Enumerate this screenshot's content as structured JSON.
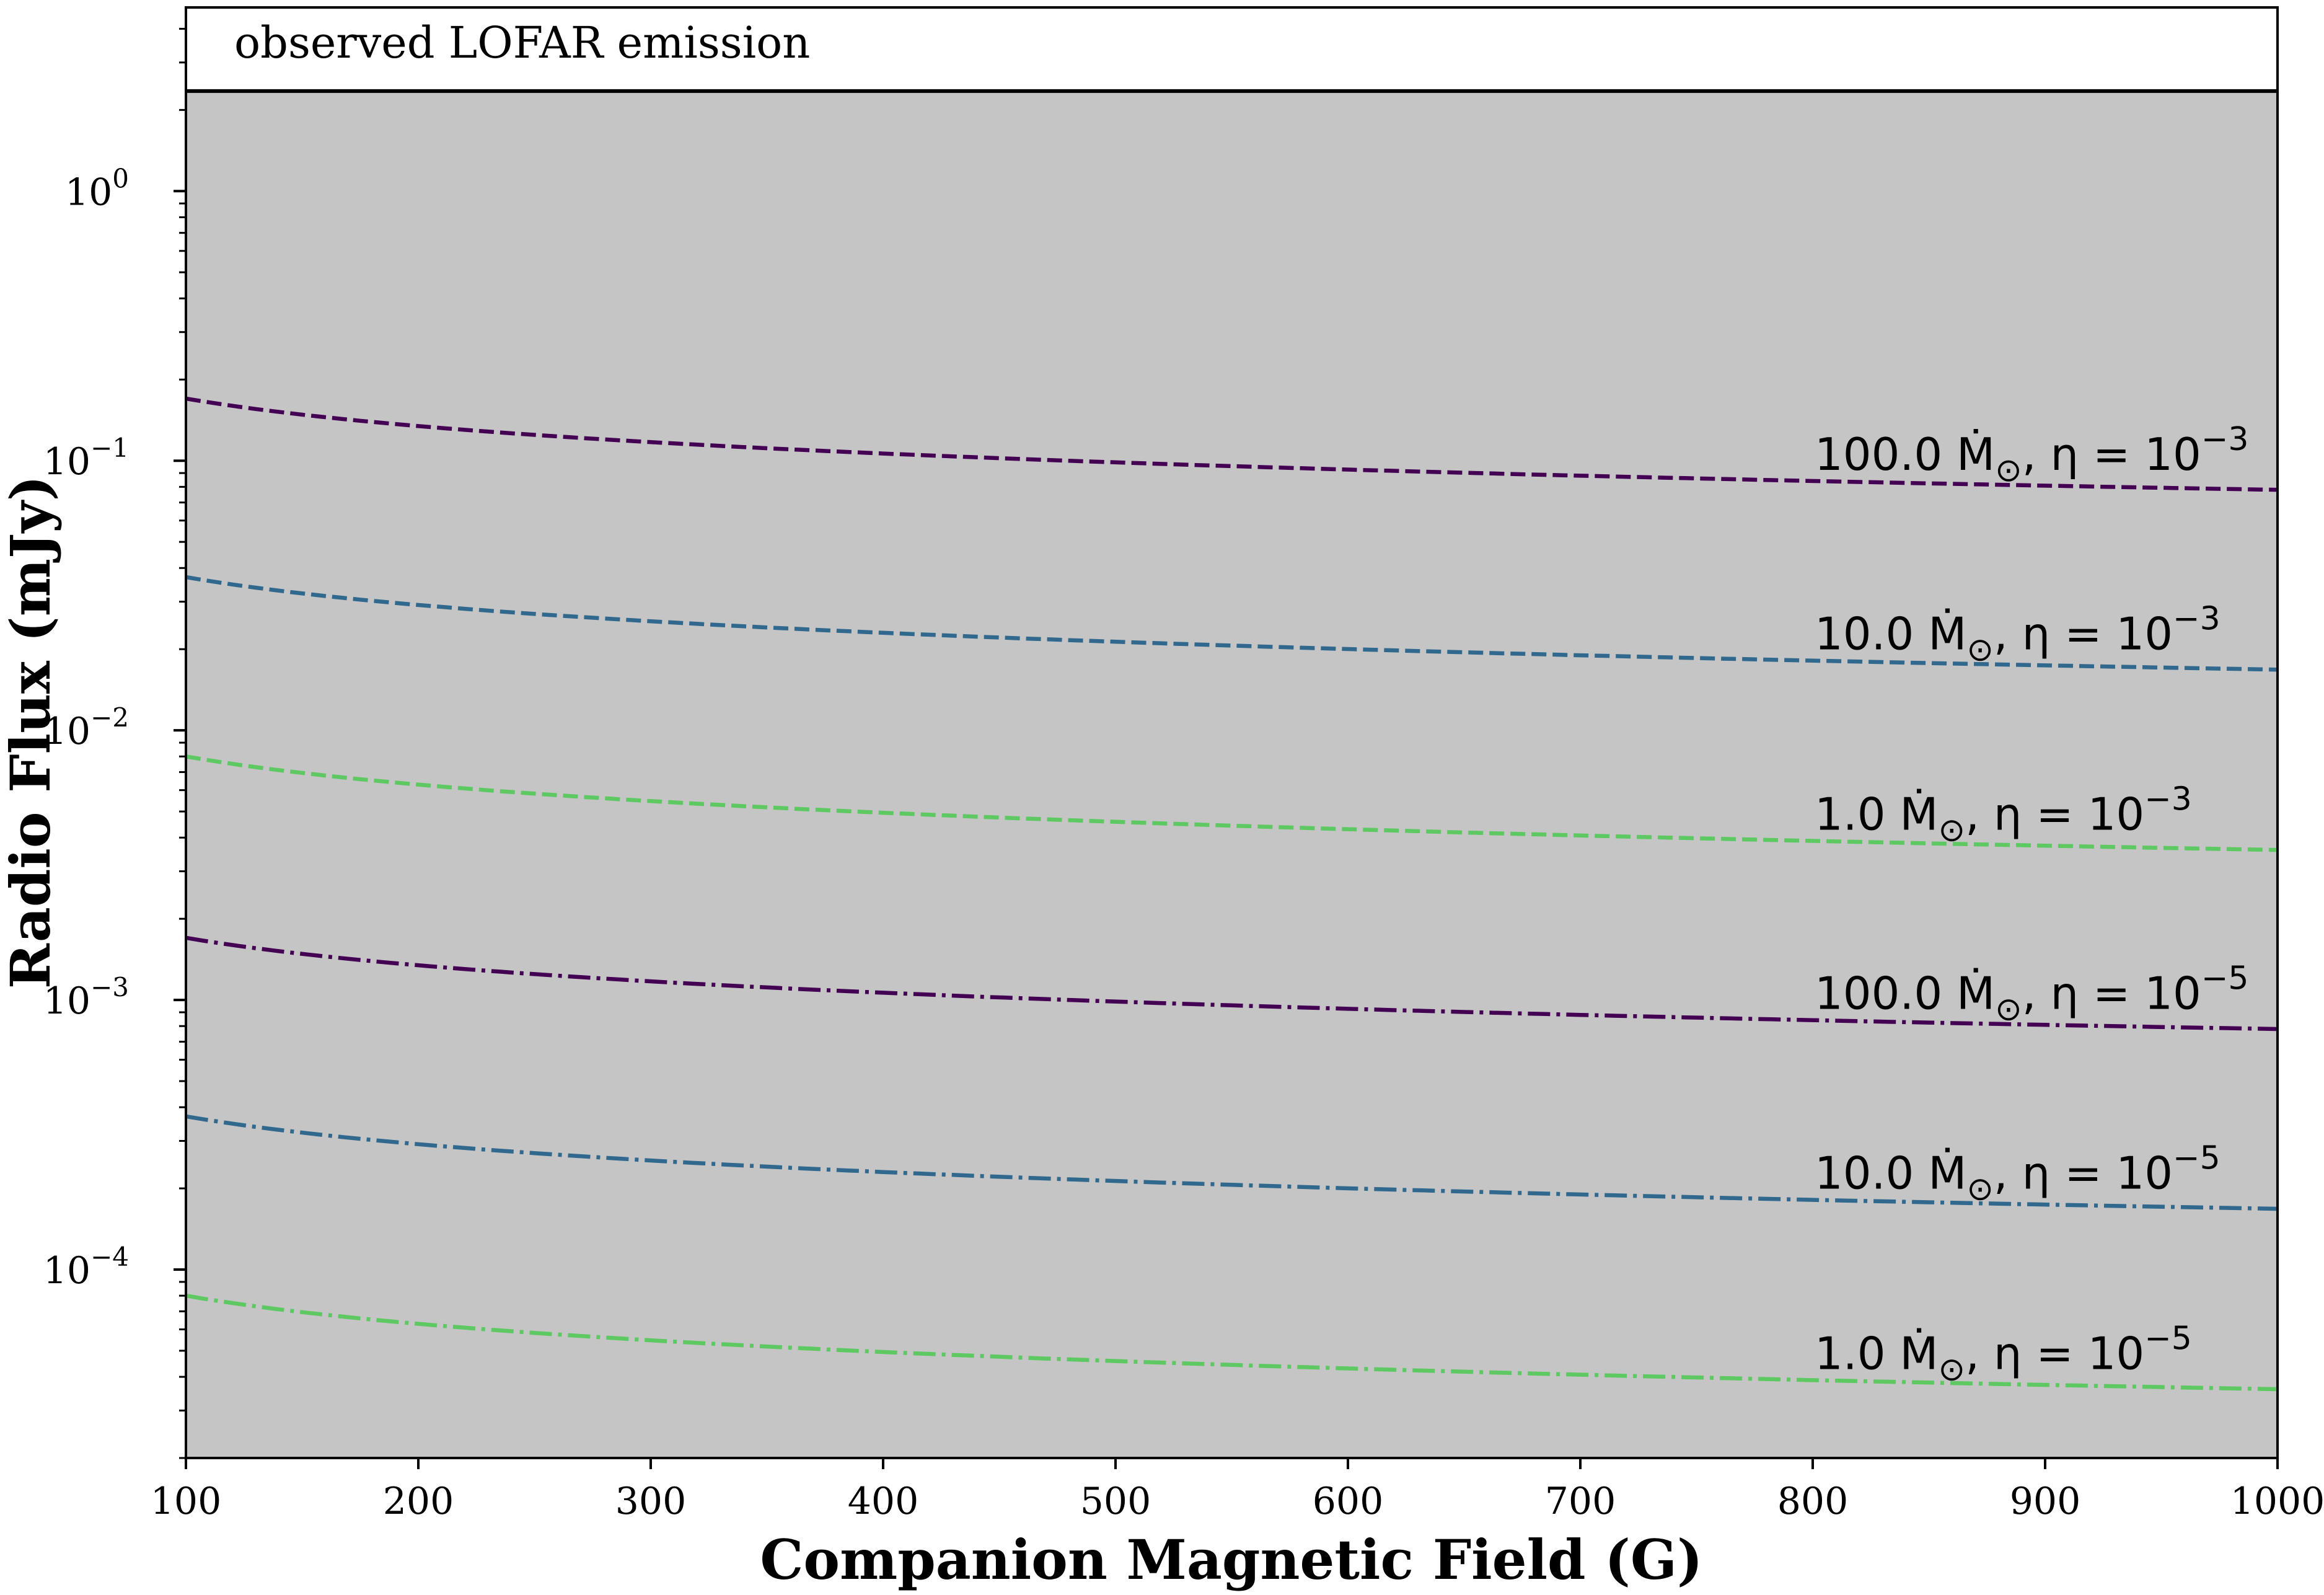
{
  "chart_data": {
    "type": "line",
    "xlabel": "Companion Magnetic Field (G)",
    "ylabel": "Radio Flux (mJy)",
    "xlim": [
      100,
      1000
    ],
    "ylim": [
      2e-05,
      4.8
    ],
    "yscale": "log",
    "grid": false,
    "legend": "none",
    "x_ticks": [
      100,
      200,
      300,
      400,
      500,
      600,
      700,
      800,
      900,
      1000
    ],
    "y_ticks": [
      {
        "value": 0.0001,
        "base": "10",
        "exp": "−4"
      },
      {
        "value": 0.001,
        "base": "10",
        "exp": "−3"
      },
      {
        "value": 0.01,
        "base": "10",
        "exp": "−2"
      },
      {
        "value": 0.1,
        "base": "10",
        "exp": "−1"
      },
      {
        "value": 1,
        "base": "10",
        "exp": "0"
      }
    ],
    "shaded_region": {
      "below": 2.35,
      "color": "#c5c5c5"
    },
    "observed_line": {
      "value": 2.35,
      "label": "observed LOFAR emission",
      "color": "#000000"
    },
    "series": [
      {
        "label_main": "100.0 Ṁ",
        "label_sub": "⊙",
        "label_eta": ", η = 10",
        "label_exp": "−3",
        "color": "#440154",
        "dash": "dashed",
        "y_at_100": 0.17,
        "y_at_1000": 0.078
      },
      {
        "label_main": "10.0 Ṁ",
        "label_sub": "⊙",
        "label_eta": ", η = 10",
        "label_exp": "−3",
        "color": "#31688e",
        "dash": "dashed",
        "y_at_100": 0.037,
        "y_at_1000": 0.0168
      },
      {
        "label_main": "1.0 Ṁ",
        "label_sub": "⊙",
        "label_eta": ", η = 10",
        "label_exp": "−3",
        "color": "#5ec962",
        "dash": "dashed",
        "y_at_100": 0.008,
        "y_at_1000": 0.0036
      },
      {
        "label_main": "100.0 Ṁ",
        "label_sub": "⊙",
        "label_eta": ", η = 10",
        "label_exp": "−5",
        "color": "#440154",
        "dash": "dashdot",
        "y_at_100": 0.0017,
        "y_at_1000": 0.00078
      },
      {
        "label_main": "10.0 Ṁ",
        "label_sub": "⊙",
        "label_eta": ", η = 10",
        "label_exp": "−5",
        "color": "#31688e",
        "dash": "dashdot",
        "y_at_100": 0.00037,
        "y_at_1000": 0.000168
      },
      {
        "label_main": "1.0 Ṁ",
        "label_sub": "⊙",
        "label_eta": ", η = 10",
        "label_exp": "−5",
        "color": "#5ec962",
        "dash": "dashdot",
        "y_at_100": 8e-05,
        "y_at_1000": 3.6e-05
      }
    ]
  }
}
